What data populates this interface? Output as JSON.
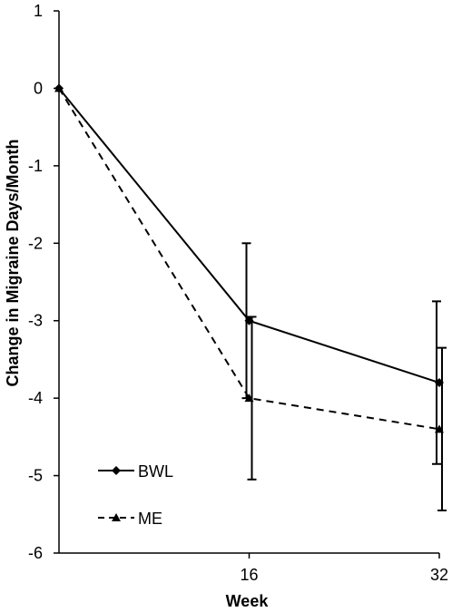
{
  "chart_data": {
    "type": "line",
    "xlabel": "Week",
    "ylabel": "Change in Migraine Days/Month",
    "x": [
      0,
      16,
      32
    ],
    "x_tick_labels": [
      "16",
      "32"
    ],
    "x_ticks": [
      16,
      32
    ],
    "xlim": [
      0,
      32
    ],
    "ylim": [
      -6,
      1
    ],
    "y_ticks": [
      1,
      0,
      -1,
      -2,
      -3,
      -4,
      -5,
      -6
    ],
    "y_tick_labels": [
      "1",
      "0",
      "-1",
      "-2",
      "-3",
      "-4",
      "-5",
      "-6"
    ],
    "grid": false,
    "legend_position": "bottom-left",
    "series": [
      {
        "name": "BWL",
        "values": [
          0,
          -3.0,
          -3.8
        ],
        "error": [
          0,
          1.0,
          1.05
        ],
        "line_style": "solid",
        "marker": "diamond",
        "color": "#000000"
      },
      {
        "name": "ME",
        "values": [
          0,
          -4.0,
          -4.4
        ],
        "error": [
          0,
          1.05,
          1.05
        ],
        "line_style": "dashed",
        "marker": "triangle",
        "color": "#000000"
      }
    ]
  }
}
